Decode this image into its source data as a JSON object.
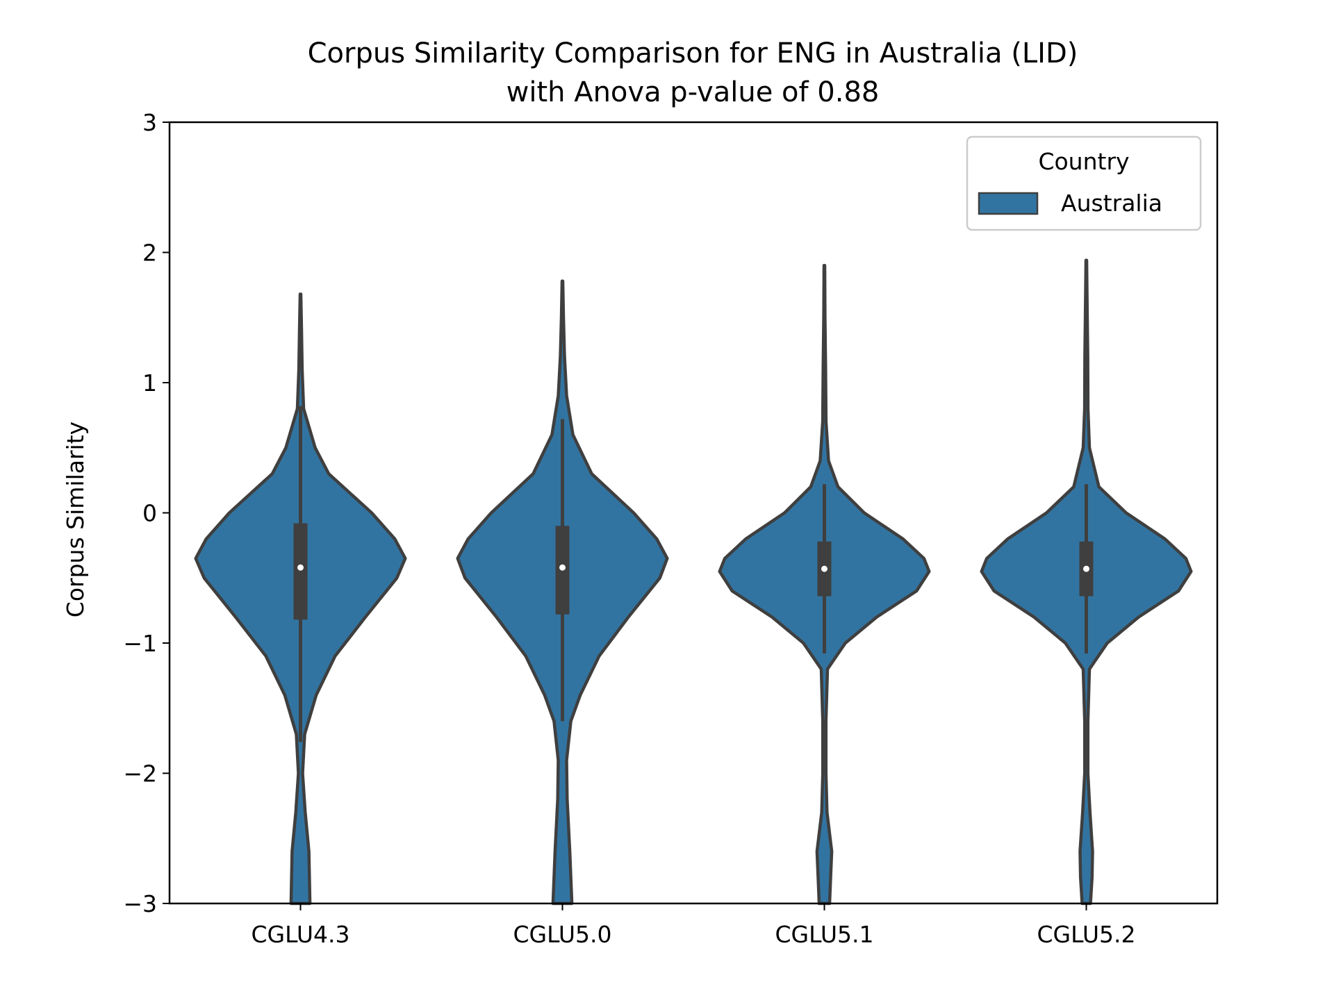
{
  "chart_data": {
    "type": "violin",
    "title_line1": "Corpus Similarity Comparison for ENG in Australia (LID)",
    "title_line2": "with Anova p-value of 0.88",
    "xlabel": "",
    "ylabel": "Corpus Similarity",
    "ylim": [
      -3,
      3
    ],
    "yticks": [
      -3,
      -2,
      -1,
      0,
      1,
      2,
      3
    ],
    "ytick_labels": [
      "−3",
      "−2",
      "−1",
      "0",
      "1",
      "2",
      "3"
    ],
    "categories": [
      "CGLU4.3",
      "CGLU5.0",
      "CGLU5.1",
      "CGLU5.2"
    ],
    "legend": {
      "title": "Country",
      "entries": [
        "Australia"
      ],
      "position": "upper right"
    },
    "colors": {
      "fill": "#3274a1",
      "edge": "#3f3f3f",
      "median": "#ffffff"
    },
    "series": [
      {
        "name": "Australia",
        "violins": [
          {
            "category": "CGLU4.3",
            "median": -0.42,
            "q1": -0.82,
            "q3": -0.08,
            "whisker_low": -1.76,
            "whisker_high": 0.82,
            "profile": [
              [
                1.68,
                0.003
              ],
              [
                1.4,
                0.01
              ],
              [
                1.1,
                0.016
              ],
              [
                0.8,
                0.03
              ],
              [
                0.5,
                0.14
              ],
              [
                0.3,
                0.27
              ],
              [
                0.0,
                0.68
              ],
              [
                -0.2,
                0.9
              ],
              [
                -0.35,
                1.0
              ],
              [
                -0.5,
                0.92
              ],
              [
                -0.8,
                0.62
              ],
              [
                -1.1,
                0.33
              ],
              [
                -1.4,
                0.15
              ],
              [
                -1.7,
                0.04
              ],
              [
                -2.0,
                0.02
              ],
              [
                -2.3,
                0.045
              ],
              [
                -2.6,
                0.08
              ],
              [
                -3.0,
                0.09
              ]
            ]
          },
          {
            "category": "CGLU5.0",
            "median": -0.42,
            "q1": -0.78,
            "q3": -0.1,
            "whisker_low": -1.6,
            "whisker_high": 0.72,
            "profile": [
              [
                1.78,
                0.003
              ],
              [
                1.5,
                0.01
              ],
              [
                1.2,
                0.02
              ],
              [
                0.9,
                0.04
              ],
              [
                0.6,
                0.1
              ],
              [
                0.3,
                0.28
              ],
              [
                0.0,
                0.68
              ],
              [
                -0.2,
                0.9
              ],
              [
                -0.35,
                1.0
              ],
              [
                -0.5,
                0.93
              ],
              [
                -0.8,
                0.63
              ],
              [
                -1.1,
                0.35
              ],
              [
                -1.4,
                0.17
              ],
              [
                -1.6,
                0.08
              ],
              [
                -1.9,
                0.04
              ],
              [
                -2.2,
                0.045
              ],
              [
                -2.6,
                0.07
              ],
              [
                -3.0,
                0.09
              ]
            ]
          },
          {
            "category": "CGLU5.1",
            "median": -0.43,
            "q1": -0.64,
            "q3": -0.22,
            "whisker_low": -1.08,
            "whisker_high": 0.22,
            "profile": [
              [
                1.9,
                0.003
              ],
              [
                1.5,
                0.006
              ],
              [
                1.1,
                0.012
              ],
              [
                0.7,
                0.016
              ],
              [
                0.4,
                0.04
              ],
              [
                0.2,
                0.13
              ],
              [
                0.0,
                0.38
              ],
              [
                -0.2,
                0.75
              ],
              [
                -0.35,
                0.95
              ],
              [
                -0.45,
                1.0
              ],
              [
                -0.6,
                0.88
              ],
              [
                -0.8,
                0.5
              ],
              [
                -1.0,
                0.2
              ],
              [
                -1.2,
                0.03
              ],
              [
                -1.6,
                0.015
              ],
              [
                -2.0,
                0.015
              ],
              [
                -2.3,
                0.025
              ],
              [
                -2.6,
                0.07
              ],
              [
                -2.8,
                0.06
              ],
              [
                -3.0,
                0.05
              ]
            ]
          },
          {
            "category": "CGLU5.2",
            "median": -0.43,
            "q1": -0.64,
            "q3": -0.22,
            "whisker_low": -1.08,
            "whisker_high": 0.22,
            "profile": [
              [
                1.94,
                0.003
              ],
              [
                1.6,
                0.008
              ],
              [
                1.2,
                0.014
              ],
              [
                0.8,
                0.016
              ],
              [
                0.5,
                0.03
              ],
              [
                0.2,
                0.12
              ],
              [
                0.0,
                0.38
              ],
              [
                -0.2,
                0.75
              ],
              [
                -0.35,
                0.95
              ],
              [
                -0.45,
                1.0
              ],
              [
                -0.6,
                0.88
              ],
              [
                -0.8,
                0.5
              ],
              [
                -1.0,
                0.2
              ],
              [
                -1.2,
                0.03
              ],
              [
                -1.6,
                0.015
              ],
              [
                -2.0,
                0.015
              ],
              [
                -2.3,
                0.035
              ],
              [
                -2.6,
                0.06
              ],
              [
                -2.8,
                0.055
              ],
              [
                -3.0,
                0.04
              ]
            ]
          }
        ]
      }
    ]
  }
}
